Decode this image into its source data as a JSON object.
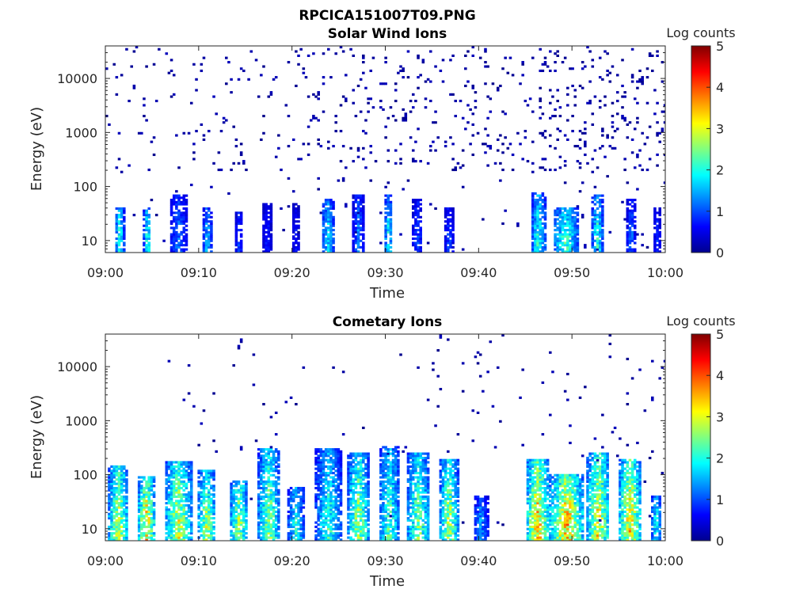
{
  "figure": {
    "title": "RPCICA151007T09.PNG"
  },
  "chart_data": [
    {
      "type": "heatmap",
      "title": "Solar Wind Ions",
      "xlabel": "Time",
      "ylabel": "Energy (eV)",
      "x_ticks": [
        "09:00",
        "09:10",
        "09:20",
        "09:30",
        "09:40",
        "09:50",
        "10:00"
      ],
      "xlim": [
        0,
        60
      ],
      "x_unit": "minutes after 09:00",
      "y_ticks": [
        "10",
        "100",
        "1000",
        "10000"
      ],
      "y_scale": "log",
      "ylim": [
        6,
        40000
      ],
      "colorbar": {
        "label": "Log counts",
        "ticks": [
          "0",
          "1",
          "2",
          "3",
          "4",
          "5"
        ],
        "range": [
          0,
          5
        ],
        "colormap": "jet"
      },
      "bursts": [
        {
          "t": 1.4,
          "w": 0.5,
          "top": 40,
          "peak": 2.1
        },
        {
          "t": 4.4,
          "w": 0.4,
          "top": 40,
          "peak": 2.2
        },
        {
          "t": 7.7,
          "w": 1.0,
          "top": 70,
          "peak": 1.2
        },
        {
          "t": 10.8,
          "w": 0.5,
          "top": 40,
          "peak": 1.6
        },
        {
          "t": 14.2,
          "w": 0.4,
          "top": 35,
          "peak": 1.0
        },
        {
          "t": 17.2,
          "w": 0.6,
          "top": 50,
          "peak": 0.8
        },
        {
          "t": 20.3,
          "w": 0.5,
          "top": 50,
          "peak": 0.7
        },
        {
          "t": 23.7,
          "w": 0.7,
          "top": 60,
          "peak": 1.8
        },
        {
          "t": 27.0,
          "w": 0.6,
          "top": 70,
          "peak": 1.3
        },
        {
          "t": 30.2,
          "w": 0.5,
          "top": 70,
          "peak": 1.9
        },
        {
          "t": 33.3,
          "w": 0.6,
          "top": 60,
          "peak": 1.0
        },
        {
          "t": 36.7,
          "w": 0.5,
          "top": 40,
          "peak": 1.0
        },
        {
          "t": 46.3,
          "w": 0.8,
          "top": 80,
          "peak": 2.1
        },
        {
          "t": 49.2,
          "w": 1.4,
          "top": 40,
          "peak": 2.2
        },
        {
          "t": 52.6,
          "w": 0.6,
          "top": 70,
          "peak": 2.1
        },
        {
          "t": 56.2,
          "w": 0.5,
          "top": 60,
          "peak": 1.2
        },
        {
          "t": 59.0,
          "w": 0.4,
          "top": 40,
          "peak": 0.9
        }
      ],
      "scatter_density": 0.55
    },
    {
      "type": "heatmap",
      "title": "Cometary Ions",
      "xlabel": "Time",
      "ylabel": "Energy (eV)",
      "x_ticks": [
        "09:00",
        "09:10",
        "09:20",
        "09:30",
        "09:40",
        "09:50",
        "10:00"
      ],
      "xlim": [
        0,
        60
      ],
      "x_unit": "minutes after 09:00",
      "y_ticks": [
        "10",
        "100",
        "1000",
        "10000"
      ],
      "y_scale": "log",
      "ylim": [
        6,
        40000
      ],
      "colorbar": {
        "label": "Log counts",
        "ticks": [
          "0",
          "1",
          "2",
          "3",
          "4",
          "5"
        ],
        "range": [
          0,
          5
        ],
        "colormap": "jet"
      },
      "bursts": [
        {
          "t": 1.3,
          "w": 1.1,
          "top": 150,
          "peak": 3.0
        },
        {
          "t": 4.3,
          "w": 0.9,
          "top": 90,
          "peak": 3.4
        },
        {
          "t": 7.7,
          "w": 1.5,
          "top": 180,
          "peak": 3.0
        },
        {
          "t": 10.7,
          "w": 1.0,
          "top": 120,
          "peak": 2.8
        },
        {
          "t": 14.2,
          "w": 1.0,
          "top": 80,
          "peak": 2.8
        },
        {
          "t": 17.4,
          "w": 1.2,
          "top": 300,
          "peak": 2.7
        },
        {
          "t": 20.3,
          "w": 0.9,
          "top": 60,
          "peak": 2.0
        },
        {
          "t": 23.8,
          "w": 1.4,
          "top": 300,
          "peak": 2.2
        },
        {
          "t": 27.0,
          "w": 1.2,
          "top": 250,
          "peak": 2.8
        },
        {
          "t": 30.3,
          "w": 1.1,
          "top": 350,
          "peak": 2.4
        },
        {
          "t": 33.4,
          "w": 1.3,
          "top": 250,
          "peak": 2.6
        },
        {
          "t": 36.7,
          "w": 1.0,
          "top": 200,
          "peak": 2.9
        },
        {
          "t": 40.1,
          "w": 0.8,
          "top": 40,
          "peak": 1.4
        },
        {
          "t": 46.2,
          "w": 1.3,
          "top": 200,
          "peak": 3.5
        },
        {
          "t": 49.3,
          "w": 1.8,
          "top": 100,
          "peak": 3.6
        },
        {
          "t": 52.7,
          "w": 1.2,
          "top": 250,
          "peak": 3.3
        },
        {
          "t": 56.1,
          "w": 1.2,
          "top": 200,
          "peak": 3.4
        },
        {
          "t": 58.9,
          "w": 0.6,
          "top": 40,
          "peak": 2.0
        }
      ],
      "scatter_density": 0.12
    }
  ]
}
